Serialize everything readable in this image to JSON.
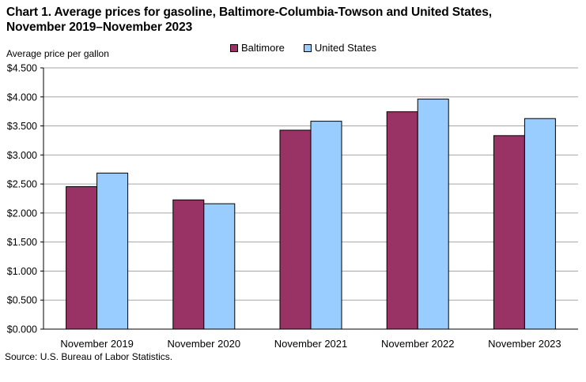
{
  "title_line1": "Chart 1. Average prices for gasoline, Baltimore-Columbia-Towson and United States,",
  "title_line2": "November 2019–November 2023",
  "source": "Source: U.S. Bureau of Labor Statistics.",
  "colors": {
    "baltimore": "#993366",
    "united_states": "#99ccff"
  },
  "chart_data": {
    "type": "bar",
    "ylabel": "Average price per gallon",
    "categories": [
      "November 2019",
      "November 2020",
      "November 2021",
      "November 2022",
      "November 2023"
    ],
    "series": [
      {
        "name": "Baltimore",
        "values": [
          2.455,
          2.226,
          3.427,
          3.744,
          3.333
        ]
      },
      {
        "name": "United States",
        "values": [
          2.688,
          2.16,
          3.581,
          3.962,
          3.627
        ]
      }
    ],
    "ylim": [
      0,
      4.5
    ],
    "yticks": [
      "$0.000",
      "$0.500",
      "$1.000",
      "$1.500",
      "$2.000",
      "$2.500",
      "$3.000",
      "$3.500",
      "$4.000",
      "$4.500"
    ],
    "ytick_values": [
      0,
      0.5,
      1.0,
      1.5,
      2.0,
      2.5,
      3.0,
      3.5,
      4.0,
      4.5
    ],
    "grid": true,
    "legend_position": "top-center"
  }
}
